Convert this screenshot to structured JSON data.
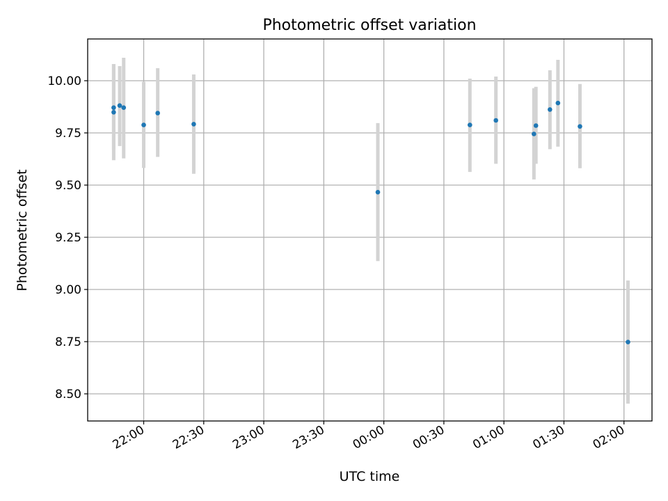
{
  "chart_data": {
    "type": "scatter",
    "title": "Photometric offset variation",
    "xlabel": "UTC time",
    "ylabel": "Photometric offset",
    "x_axis_type": "time",
    "x_domain": [
      "21:32",
      "02:14"
    ],
    "xlim": [
      "21:32",
      "02:14"
    ],
    "ylim": [
      8.37,
      10.2
    ],
    "grid": true,
    "x_ticks": [
      "22:00",
      "22:30",
      "23:00",
      "23:30",
      "00:00",
      "00:30",
      "01:00",
      "01:30",
      "02:00"
    ],
    "y_ticks": [
      "8.50",
      "8.75",
      "9.00",
      "9.25",
      "9.50",
      "9.75",
      "10.00"
    ],
    "y_tick_values": [
      8.5,
      8.75,
      9.0,
      9.25,
      9.5,
      9.75,
      10.0
    ],
    "series": [
      {
        "marker_color": "#1f77b4",
        "errorbar_color": "#d3d3d3",
        "points": [
          {
            "t": "21:45",
            "y": 9.871,
            "lo": 9.668,
            "hi": 10.08
          },
          {
            "t": "21:45",
            "y": 9.849,
            "lo": 9.619,
            "hi": 10.08
          },
          {
            "t": "21:48",
            "y": 9.881,
            "lo": 9.687,
            "hi": 10.07
          },
          {
            "t": "21:50",
            "y": 9.871,
            "lo": 9.628,
            "hi": 10.11
          },
          {
            "t": "22:00",
            "y": 9.788,
            "lo": 9.582,
            "hi": 9.995
          },
          {
            "t": "22:07",
            "y": 9.845,
            "lo": 9.635,
            "hi": 10.06
          },
          {
            "t": "22:25",
            "y": 9.792,
            "lo": 9.554,
            "hi": 10.03
          },
          {
            "t": "23:57",
            "y": 9.466,
            "lo": 9.136,
            "hi": 9.797
          },
          {
            "t": "00:43",
            "y": 9.788,
            "lo": 9.563,
            "hi": 10.01
          },
          {
            "t": "00:56",
            "y": 9.81,
            "lo": 9.602,
            "hi": 10.02
          },
          {
            "t": "01:15",
            "y": 9.745,
            "lo": 9.527,
            "hi": 9.964
          },
          {
            "t": "01:16",
            "y": 9.785,
            "lo": 9.602,
            "hi": 9.971
          },
          {
            "t": "01:23",
            "y": 9.862,
            "lo": 9.672,
            "hi": 10.05
          },
          {
            "t": "01:27",
            "y": 9.893,
            "lo": 9.684,
            "hi": 10.1
          },
          {
            "t": "01:38",
            "y": 9.781,
            "lo": 9.581,
            "hi": 9.984
          },
          {
            "t": "02:02",
            "y": 8.748,
            "lo": 8.453,
            "hi": 9.043
          }
        ]
      }
    ]
  }
}
